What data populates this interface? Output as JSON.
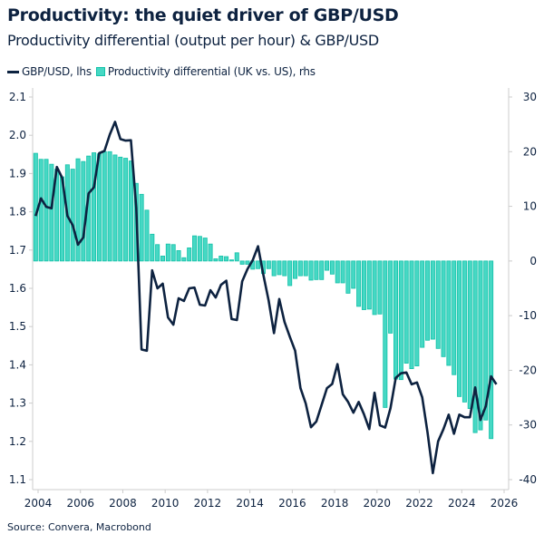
{
  "title": "Productivity: the quiet driver of GBP/USD",
  "subtitle": "Productivity differential (output per hour) & GBP/USD",
  "source": "Source: Convera, Macrobond",
  "colors": {
    "line": "#0d2240",
    "bar_fill": "#46d8c4",
    "bar_stroke": "#12c1a8",
    "axis": "#cccccc"
  },
  "chart_data": {
    "type": "bar+line",
    "legend_position": "top-left",
    "grid": false,
    "x_ticks": [
      "2004",
      "2006",
      "2008",
      "2010",
      "2012",
      "2014",
      "2016",
      "2018",
      "2020",
      "2022",
      "2024",
      "2026"
    ],
    "x_range": [
      2004,
      2026
    ],
    "left_axis": {
      "ylim": [
        1.1,
        2.1
      ],
      "ticks": [
        "1.1",
        "1.2",
        "1.3",
        "1.4",
        "1.5",
        "1.6",
        "1.7",
        "1.8",
        "1.9",
        "2.0",
        "2.1"
      ]
    },
    "right_axis": {
      "ylim": [
        -40,
        30
      ],
      "ticks": [
        "-40",
        "-30",
        "-20",
        "-10",
        "0",
        "10",
        "20",
        "30"
      ]
    },
    "categories": [
      "2004Q1",
      "2004Q2",
      "2004Q3",
      "2004Q4",
      "2005Q1",
      "2005Q2",
      "2005Q3",
      "2005Q4",
      "2006Q1",
      "2006Q2",
      "2006Q3",
      "2006Q4",
      "2007Q1",
      "2007Q2",
      "2007Q3",
      "2007Q4",
      "2008Q1",
      "2008Q2",
      "2008Q3",
      "2008Q4",
      "2009Q1",
      "2009Q2",
      "2009Q3",
      "2009Q4",
      "2010Q1",
      "2010Q2",
      "2010Q3",
      "2010Q4",
      "2011Q1",
      "2011Q2",
      "2011Q3",
      "2011Q4",
      "2012Q1",
      "2012Q2",
      "2012Q3",
      "2012Q4",
      "2013Q1",
      "2013Q2",
      "2013Q3",
      "2013Q4",
      "2014Q1",
      "2014Q2",
      "2014Q3",
      "2014Q4",
      "2015Q1",
      "2015Q2",
      "2015Q3",
      "2015Q4",
      "2016Q1",
      "2016Q2",
      "2016Q3",
      "2016Q4",
      "2017Q1",
      "2017Q2",
      "2017Q3",
      "2017Q4",
      "2018Q1",
      "2018Q2",
      "2018Q3",
      "2018Q4",
      "2019Q1",
      "2019Q2",
      "2019Q3",
      "2019Q4",
      "2020Q1",
      "2020Q2",
      "2020Q3",
      "2020Q4",
      "2021Q1",
      "2021Q2",
      "2021Q3",
      "2021Q4",
      "2022Q1",
      "2022Q2",
      "2022Q3",
      "2022Q4",
      "2023Q1",
      "2023Q2",
      "2023Q3",
      "2023Q4",
      "2024Q1",
      "2024Q2",
      "2024Q3",
      "2024Q4",
      "2025Q1",
      "2025Q2",
      "2025Q3",
      "2025Q4"
    ],
    "series": [
      {
        "name": "GBP/USD, lhs",
        "type": "line",
        "axis": "left",
        "values": [
          1.789,
          1.835,
          1.813,
          1.809,
          1.917,
          1.889,
          1.789,
          1.765,
          1.714,
          1.733,
          1.848,
          1.864,
          1.953,
          1.959,
          2.002,
          2.035,
          1.99,
          1.986,
          1.987,
          1.81,
          1.44,
          1.437,
          1.647,
          1.6,
          1.612,
          1.524,
          1.505,
          1.574,
          1.567,
          1.6,
          1.602,
          1.557,
          1.555,
          1.595,
          1.576,
          1.609,
          1.62,
          1.52,
          1.517,
          1.618,
          1.65,
          1.674,
          1.71,
          1.635,
          1.568,
          1.483,
          1.572,
          1.512,
          1.473,
          1.437,
          1.339,
          1.299,
          1.237,
          1.252,
          1.295,
          1.339,
          1.35,
          1.402,
          1.323,
          1.303,
          1.275,
          1.303,
          1.271,
          1.232,
          1.327,
          1.242,
          1.236,
          1.287,
          1.366,
          1.378,
          1.38,
          1.349,
          1.354,
          1.315,
          1.224,
          1.117,
          1.2,
          1.232,
          1.27,
          1.22,
          1.27,
          1.263,
          1.263,
          1.341,
          1.256,
          1.292,
          1.37,
          1.349
        ]
      },
      {
        "name": "Productivity differential (UK vs. US), rhs",
        "type": "bar",
        "axis": "right",
        "values": [
          19.7,
          18.6,
          18.6,
          17.7,
          16.8,
          15.4,
          17.6,
          16.8,
          18.7,
          18.2,
          19.2,
          19.8,
          19.6,
          20.0,
          20.0,
          19.4,
          19.0,
          18.8,
          18.3,
          14.2,
          12.2,
          9.3,
          4.9,
          3.0,
          0.9,
          3.1,
          3.0,
          1.9,
          0.6,
          2.4,
          4.6,
          4.5,
          4.2,
          3.1,
          0.4,
          0.9,
          0.8,
          0.2,
          1.5,
          -0.6,
          -0.6,
          -1.5,
          -1.4,
          -2.3,
          -1.4,
          -2.7,
          -2.5,
          -2.7,
          -4.5,
          -3.2,
          -2.7,
          -2.7,
          -3.5,
          -3.4,
          -3.4,
          -1.7,
          -2.4,
          -4.0,
          -4.0,
          -5.9,
          -5.0,
          -8.3,
          -8.9,
          -8.8,
          -9.8,
          -9.7,
          -26.8,
          -13.2,
          -21.6,
          -21.7,
          -18.7,
          -19.7,
          -19.2,
          -15.8,
          -14.5,
          -14.3,
          -16.0,
          -17.5,
          -19.1,
          -20.8,
          -24.8,
          -25.8,
          -27.0,
          -31.4,
          -30.9,
          -29.1,
          -32.5,
          null
        ]
      }
    ]
  }
}
